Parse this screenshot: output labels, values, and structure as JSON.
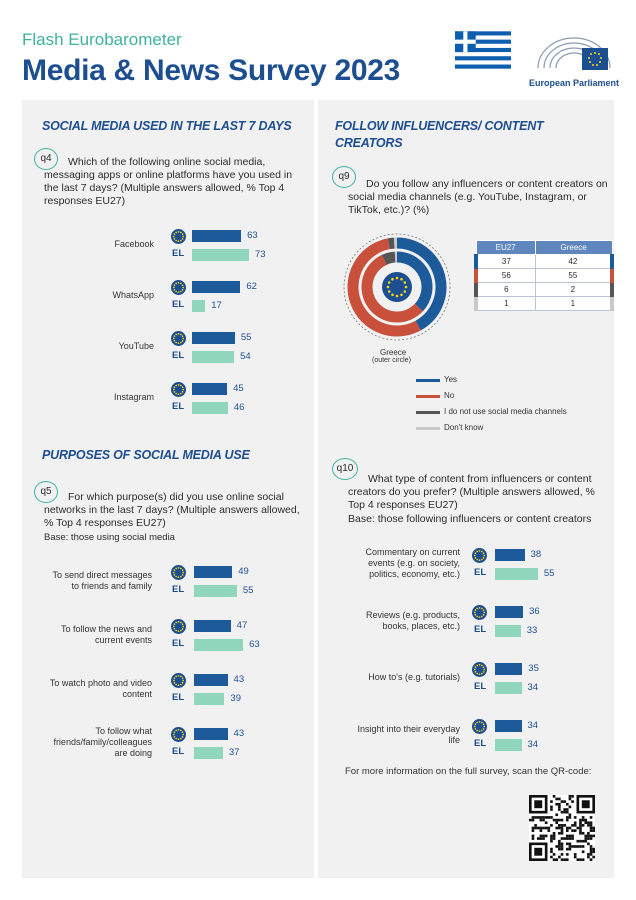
{
  "header": {
    "subtitle": "Flash Eurobarometer",
    "title": "Media & News Survey 2023",
    "ep_name": "European Parliament"
  },
  "q4": {
    "section_title": "SOCIAL MEDIA USED IN THE LAST 7 DAYS",
    "badge": "q4",
    "question": [
      "Which of the following online social media,",
      "messaging apps or online platforms have you used in",
      "the last 7 days? (Multiple answers allowed, % Top 4",
      "responses EU27)"
    ],
    "chart_data": {
      "type": "bar",
      "categories": [
        "Facebook",
        "WhatsApp",
        "YouTube",
        "Instagram"
      ],
      "series": [
        {
          "name": "EU27",
          "values": [
            63,
            62,
            55,
            45
          ]
        },
        {
          "name": "EL",
          "values": [
            73,
            17,
            54,
            46
          ]
        }
      ],
      "unit": "%"
    }
  },
  "q5": {
    "section_title": "PURPOSES OF SOCIAL MEDIA USE",
    "badge": "q5",
    "question": [
      "For which purpose(s) did you use online social",
      "networks in the last 7 days? (Multiple answers allowed,",
      "% Top 4 responses EU27)"
    ],
    "base": "Base: those using social media",
    "chart_data": {
      "type": "bar",
      "categories": [
        [
          "To send direct messages",
          "to friends and family"
        ],
        [
          "To follow the news and",
          "current events"
        ],
        [
          "To watch photo and video",
          "content"
        ],
        [
          "To follow what",
          "friends/family/colleagues",
          "are doing"
        ]
      ],
      "series": [
        {
          "name": "EU27",
          "values": [
            49,
            47,
            43,
            43
          ]
        },
        {
          "name": "EL",
          "values": [
            55,
            63,
            39,
            37
          ]
        }
      ],
      "unit": "%"
    }
  },
  "q9": {
    "section_title": [
      "FOLLOW INFLUENCERS/ CONTENT",
      "CREATORS"
    ],
    "badge": "q9",
    "question": [
      "Do you follow any influencers or content creators on",
      "social media channels (e.g. YouTube, Instagram, or",
      "TikTok, etc.)? (%)"
    ],
    "outer_label": [
      "Greece",
      "(outer circle)"
    ],
    "colors": [
      "#1d5a99",
      "#c9503b",
      "#555555",
      "#c9c9c9"
    ],
    "chart_data": {
      "type": "pie",
      "categories": [
        "Yes",
        "No",
        "I do not use social media channels",
        "Don't know"
      ],
      "series": [
        {
          "name": "EU27",
          "values": [
            37,
            56,
            6,
            1
          ]
        },
        {
          "name": "Greece",
          "values": [
            42,
            55,
            2,
            1
          ]
        }
      ],
      "unit": "%"
    },
    "table_headers": [
      "EU27",
      "Greece"
    ]
  },
  "q10": {
    "badge": "q10",
    "question": [
      "What type of content from influencers or content",
      "creators do you prefer? (Multiple answers allowed, %",
      "Top 4 responses EU27)"
    ],
    "base": "Base: those following influencers or content creators",
    "chart_data": {
      "type": "bar",
      "categories": [
        [
          "Commentary on current",
          "events (e.g. on society,",
          "politics, economy, etc.)"
        ],
        [
          "Reviews (e.g. products,",
          "books, places, etc.)"
        ],
        [
          "How to's (e.g. tutorials)"
        ],
        [
          "Insight into their everyday",
          "life"
        ]
      ],
      "series": [
        {
          "name": "EU27",
          "values": [
            38,
            36,
            35,
            34
          ]
        },
        {
          "name": "EL",
          "values": [
            55,
            33,
            34,
            34
          ]
        }
      ],
      "unit": "%"
    }
  },
  "footer": "For more information on the full survey, scan the QR-code:"
}
